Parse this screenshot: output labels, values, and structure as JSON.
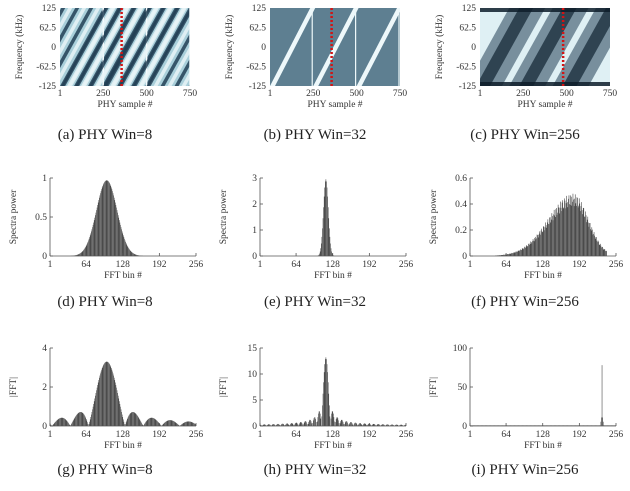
{
  "figure": {
    "captions": [
      "(a)  PHY Win=8",
      "(b)  PHY Win=32",
      "(c)  PHY Win=256",
      "(d)  PHY Win=8",
      "(e)  PHY Win=32",
      "(f)  PHY Win=256",
      "(g)  PHY Win=8",
      "(h)  PHY Win=32",
      "(i)  PHY Win=256"
    ]
  },
  "colors": {
    "bar": "#4a4a4a",
    "marker": "#d21414",
    "spec_light": "#dff0f4",
    "spec_mid": "#7fb3c6",
    "spec_dark": "#223f55",
    "axis": "#555555"
  },
  "chart_data": [
    {
      "type": "heatmap",
      "panel": "a",
      "xlabel": "PHY sample #",
      "ylabel": "Frequency (kHz)",
      "xlim": [
        1,
        750
      ],
      "ylim": [
        -125,
        125
      ],
      "xticks": [
        1,
        250,
        500,
        750
      ],
      "xtick_labels": [
        "1",
        "250",
        "500",
        "750"
      ],
      "yticks": [
        125,
        62.5,
        0,
        -62.5,
        -125
      ],
      "ytick_labels": [
        "125",
        "62.5",
        "0",
        "-62.5",
        "-125"
      ],
      "chirp_boundaries": [
        1,
        250,
        500,
        750
      ],
      "marker_x": 356,
      "style": "banded-sweep"
    },
    {
      "type": "heatmap",
      "panel": "b",
      "xlabel": "PHY sample #",
      "ylabel": "Frequency (kHz)",
      "xlim": [
        1,
        750
      ],
      "ylim": [
        -125,
        125
      ],
      "xticks": [
        1,
        250,
        500,
        750
      ],
      "xtick_labels": [
        "1",
        "250",
        "500",
        "750"
      ],
      "yticks": [
        125,
        62.5,
        0,
        -62.5,
        -125
      ],
      "ytick_labels": [
        "125",
        "62.5",
        "0",
        "-62.5",
        "-125"
      ],
      "chirp_boundaries": [
        1,
        250,
        500,
        750
      ],
      "marker_x": 356,
      "style": "thin-sweep"
    },
    {
      "type": "heatmap",
      "panel": "c",
      "xlabel": "PHY sample #",
      "ylabel": "Frequency (kHz)",
      "xlim": [
        1,
        750
      ],
      "ylim": [
        -125,
        125
      ],
      "xticks": [
        1,
        250,
        500,
        750
      ],
      "xtick_labels": [
        "1",
        "250",
        "500",
        "750"
      ],
      "yticks": [
        125,
        62.5,
        0,
        -62.5,
        -125
      ],
      "ytick_labels": [
        "125",
        "62.5",
        "0",
        "-62.5",
        "-125"
      ],
      "chirp_boundaries": [
        1,
        250,
        500,
        750
      ],
      "marker_x": 480,
      "style": "blurred-sweep"
    },
    {
      "type": "bar",
      "panel": "d",
      "xlabel": "FFT bin #",
      "ylabel": "Spectra power",
      "xlim": [
        1,
        256
      ],
      "ylim": [
        0,
        1
      ],
      "xticks": [
        1,
        64,
        128,
        192,
        256
      ],
      "xtick_labels": [
        "1",
        "64",
        "128",
        "192",
        "256"
      ],
      "yticks": [
        0,
        0.5,
        1
      ],
      "ytick_labels": [
        "0",
        "0.5",
        "1"
      ],
      "profile": {
        "shape": "gaussian",
        "center": 100,
        "width": 18,
        "peak": 0.97
      }
    },
    {
      "type": "bar",
      "panel": "e",
      "xlabel": "FFT bin #",
      "ylabel": "Spectra power",
      "xlim": [
        1,
        256
      ],
      "ylim": [
        0,
        3
      ],
      "xticks": [
        1,
        64,
        128,
        192,
        256
      ],
      "xtick_labels": [
        "1",
        "64",
        "128",
        "192",
        "256"
      ],
      "yticks": [
        0,
        1,
        2,
        3
      ],
      "ytick_labels": [
        "0",
        "1",
        "2",
        "3"
      ],
      "profile": {
        "shape": "gaussian",
        "center": 116,
        "width": 4.2,
        "peak": 2.95
      }
    },
    {
      "type": "bar",
      "panel": "f",
      "xlabel": "FFT bin #",
      "ylabel": "Spectra power",
      "xlim": [
        1,
        256
      ],
      "ylim": [
        0,
        0.6
      ],
      "xticks": [
        1,
        64,
        128,
        192,
        256
      ],
      "xtick_labels": [
        "1",
        "64",
        "128",
        "192",
        "256"
      ],
      "yticks": [
        0,
        0.2,
        0.4,
        0.6
      ],
      "ytick_labels": [
        "0",
        "0.2",
        "0.4",
        "0.6"
      ],
      "profile": {
        "shape": "skewed",
        "center": 182,
        "left_width": 44,
        "right_width": 26,
        "peak": 0.48,
        "start": 45,
        "end": 240
      }
    },
    {
      "type": "bar",
      "panel": "g",
      "xlabel": "FFT bin #",
      "ylabel": "|FFT|",
      "xlim": [
        1,
        256
      ],
      "ylim": [
        0,
        4
      ],
      "xticks": [
        1,
        64,
        128,
        192,
        256
      ],
      "xtick_labels": [
        "1",
        "64",
        "128",
        "192",
        "256"
      ],
      "yticks": [
        0,
        2,
        4
      ],
      "ytick_labels": [
        "0",
        "2",
        "4"
      ],
      "profile": {
        "shape": "sinc",
        "center": 100,
        "lobe": 32,
        "peak": 3.3
      }
    },
    {
      "type": "bar",
      "panel": "h",
      "xlabel": "FFT bin #",
      "ylabel": "|FFT|",
      "xlim": [
        1,
        256
      ],
      "ylim": [
        0,
        15
      ],
      "xticks": [
        1,
        64,
        128,
        192,
        256
      ],
      "xtick_labels": [
        "1",
        "64",
        "128",
        "192",
        "256"
      ],
      "yticks": [
        0,
        5,
        10,
        15
      ],
      "ytick_labels": [
        "0",
        "5",
        "10",
        "15"
      ],
      "profile": {
        "shape": "sinc",
        "center": 116,
        "lobe": 8,
        "peak": 13.2
      }
    },
    {
      "type": "bar",
      "panel": "i",
      "xlabel": "FFT bin #",
      "ylabel": "|FFT|",
      "xlim": [
        1,
        256
      ],
      "ylim": [
        0,
        100
      ],
      "xticks": [
        1,
        64,
        128,
        192,
        256
      ],
      "xtick_labels": [
        "1",
        "64",
        "128",
        "192",
        "256"
      ],
      "yticks": [
        0,
        50,
        100
      ],
      "ytick_labels": [
        "0",
        "50",
        "100"
      ],
      "profile": {
        "shape": "spike",
        "center": 232,
        "peak": 78,
        "floor": 0.8
      }
    }
  ]
}
